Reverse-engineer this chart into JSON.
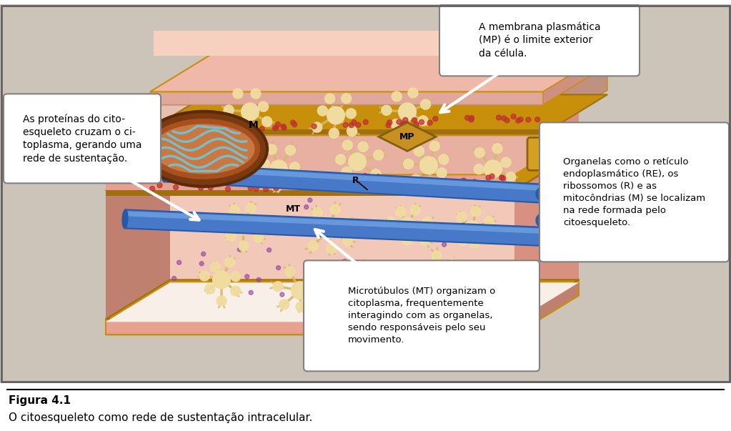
{
  "bg_color": "#ccc4b8",
  "figure_bg": "#ffffff",
  "caption_bold": "Figura 4.1",
  "caption_normal": "O citoesqueleto como rede de sustentação intracelular.",
  "caption_fontsize": 11,
  "box_style_color": "#404040",
  "text_top_right": "A membrana plasmática\n(MP) é o limite exterior\nda célula.",
  "text_left": "As proteínas do cito-\nesqueleto cruzam o ci-\ntoplasma, gerando uma\nrede de sustentação.",
  "text_right": "Organelas como o retículo\nendoplasmático (RE), os\nribossomos (R) e as\nmitôcndrias (M) se localizam\nna rede formada pelo\ncitoesqueleto.",
  "text_bottom": "Microtúbulos (MT) organizam o\ncitoplasma, frequentemente\ninteragindo com as organelas,\nsendo responsáveis pelo seu\nmovimento.",
  "membrane_pink": "#e8a090",
  "membrane_light_pink": "#f0c0b0",
  "membrane_cream": "#f8e0d0",
  "gold_border": "#c8900a",
  "gold_dark": "#a07010",
  "cell_interior": "#f5e0d0",
  "mt_blue": "#4878c8",
  "mt_dark": "#2858a8",
  "mt_highlight": "#88aae8",
  "network_tan": "#d4b870",
  "network_dark_tan": "#a88830",
  "network_light": "#f0dca0",
  "mito_outer": "#7a3a10",
  "mito_mid": "#a85020",
  "mito_inner": "#c87840",
  "mito_cristae": "#78c0d0",
  "re_gold": "#d4a020",
  "mp_gold": "#c89020",
  "dot_red": "#c03030",
  "dot_purple": "#9040a0",
  "white_arrow": "#ffffff",
  "wall_pink": "#d09080"
}
